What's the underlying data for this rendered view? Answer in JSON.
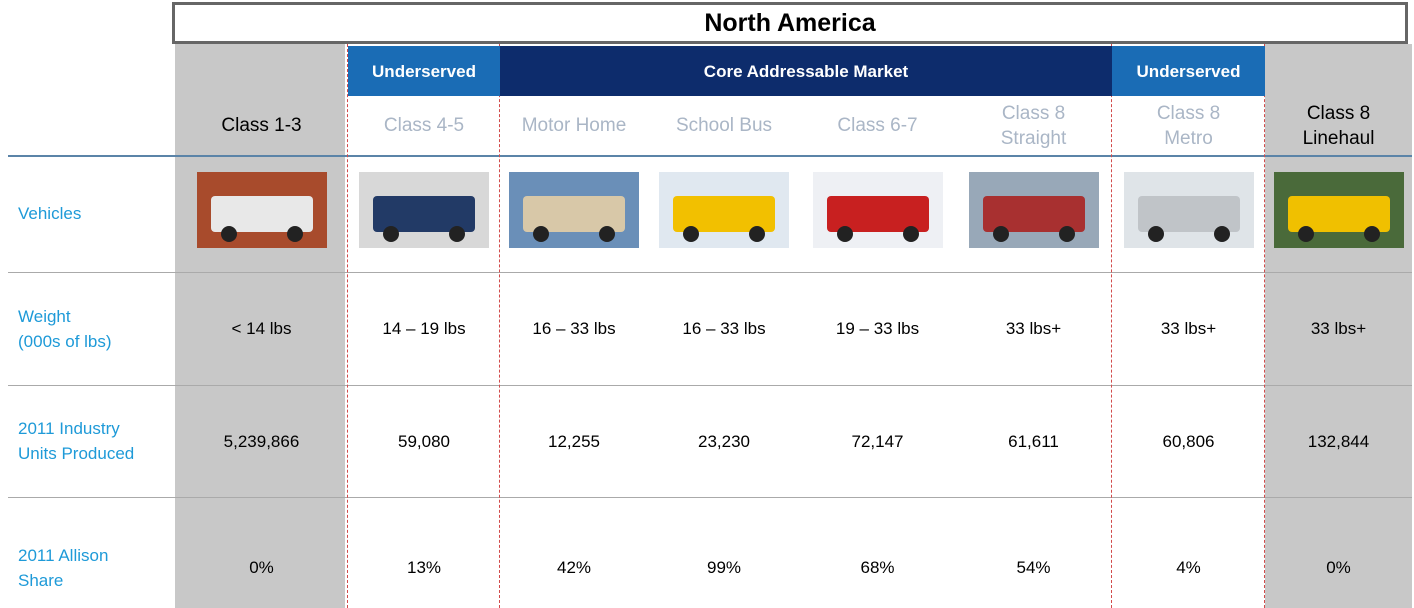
{
  "title": "North America",
  "groups": [
    "Underserved",
    "Core Addressable Market",
    "Underserved"
  ],
  "row_labels": [
    "Vehicles",
    "Weight\n(000s of lbs)",
    "2011 Industry\nUnits Produced",
    "2011 Allison\nShare"
  ],
  "columns": [
    {
      "header": "Class 1-3",
      "weight": "< 14 lbs",
      "units": "5,239,866",
      "share": "0%"
    },
    {
      "header": "Class 4-5",
      "weight": "14 – 19 lbs",
      "units": "59,080",
      "share": "13%"
    },
    {
      "header": "Motor Home",
      "weight": "16 – 33 lbs",
      "units": "12,255",
      "share": "42%"
    },
    {
      "header": "School Bus",
      "weight": "16 – 33 lbs",
      "units": "23,230",
      "share": "99%"
    },
    {
      "header": "Class 6-7",
      "weight": "19 – 33 lbs",
      "units": "72,147",
      "share": "68%"
    },
    {
      "header": "Class 8\nStraight",
      "weight": "33 lbs+",
      "units": "61,611",
      "share": "54%"
    },
    {
      "header": "Class 8\nMetro",
      "weight": "33 lbs+",
      "units": "60,806",
      "share": "4%"
    },
    {
      "header": "Class 8\nLinehaul",
      "weight": "33 lbs+",
      "units": "132,844",
      "share": "0%"
    }
  ]
}
